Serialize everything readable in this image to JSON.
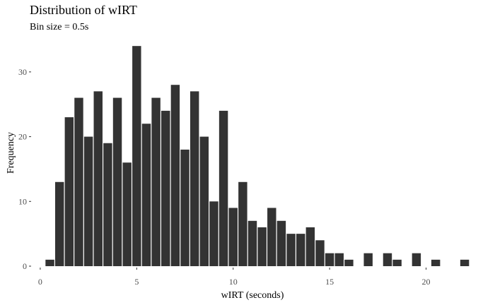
{
  "chart_data": {
    "type": "bar",
    "title": "Distribution of wIRT",
    "subtitle": "Bin size = 0.5s",
    "xlabel": "wIRT (seconds)",
    "ylabel": "Frequency",
    "bin_width": 0.5,
    "xlim": [
      -0.4,
      22.4
    ],
    "ylim": [
      0,
      35
    ],
    "x_ticks": [
      0,
      5,
      10,
      15,
      20
    ],
    "x_tick_labels": [
      "0",
      "5",
      "10",
      "15",
      "20"
    ],
    "y_ticks": [
      0,
      10,
      20,
      30
    ],
    "y_tick_labels": [
      "0",
      "10",
      "20",
      "30"
    ],
    "grid": false,
    "bar_color": "#333333",
    "bins": [
      {
        "x": 0.5,
        "y": 1
      },
      {
        "x": 1.0,
        "y": 13
      },
      {
        "x": 1.5,
        "y": 23
      },
      {
        "x": 2.0,
        "y": 26
      },
      {
        "x": 2.5,
        "y": 20
      },
      {
        "x": 3.0,
        "y": 27
      },
      {
        "x": 3.5,
        "y": 19
      },
      {
        "x": 4.0,
        "y": 26
      },
      {
        "x": 4.5,
        "y": 16
      },
      {
        "x": 5.0,
        "y": 34
      },
      {
        "x": 5.5,
        "y": 22
      },
      {
        "x": 6.0,
        "y": 26
      },
      {
        "x": 6.5,
        "y": 24
      },
      {
        "x": 7.0,
        "y": 28
      },
      {
        "x": 7.5,
        "y": 18
      },
      {
        "x": 8.0,
        "y": 27
      },
      {
        "x": 8.5,
        "y": 20
      },
      {
        "x": 9.0,
        "y": 10
      },
      {
        "x": 9.5,
        "y": 24
      },
      {
        "x": 10.0,
        "y": 9
      },
      {
        "x": 10.5,
        "y": 13
      },
      {
        "x": 11.0,
        "y": 7
      },
      {
        "x": 11.5,
        "y": 6
      },
      {
        "x": 12.0,
        "y": 9
      },
      {
        "x": 12.5,
        "y": 7
      },
      {
        "x": 13.0,
        "y": 5
      },
      {
        "x": 13.5,
        "y": 5
      },
      {
        "x": 14.0,
        "y": 6
      },
      {
        "x": 14.5,
        "y": 4
      },
      {
        "x": 15.0,
        "y": 2
      },
      {
        "x": 15.5,
        "y": 2
      },
      {
        "x": 16.0,
        "y": 1
      },
      {
        "x": 17.0,
        "y": 2
      },
      {
        "x": 18.0,
        "y": 2
      },
      {
        "x": 18.5,
        "y": 1
      },
      {
        "x": 19.5,
        "y": 2
      },
      {
        "x": 20.5,
        "y": 1
      },
      {
        "x": 22.0,
        "y": 1
      }
    ]
  }
}
